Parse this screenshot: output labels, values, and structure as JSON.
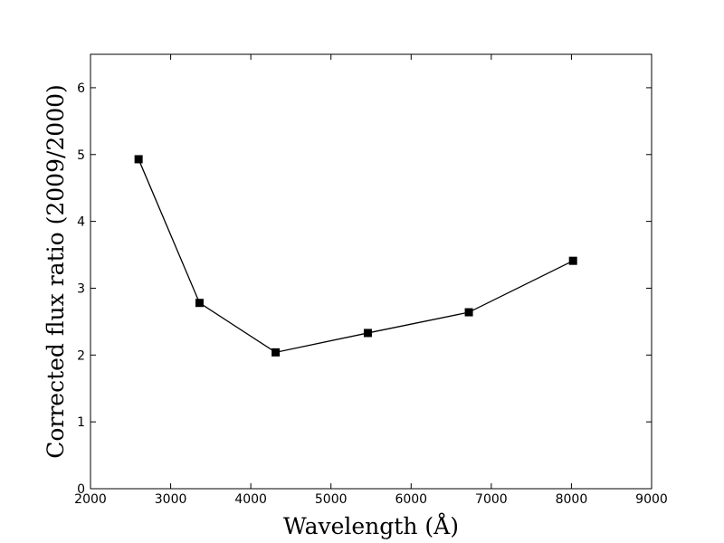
{
  "chart_data": {
    "type": "line",
    "xlabel": "Wavelength (Å)",
    "ylabel": "Corrected flux ratio (2009/2000)",
    "xlim": [
      2000,
      9000
    ],
    "ylim": [
      0,
      6.5
    ],
    "x_ticks": [
      "2000",
      "3000",
      "4000",
      "5000",
      "6000",
      "7000",
      "8000",
      "9000"
    ],
    "y_ticks": [
      "0",
      "1",
      "2",
      "3",
      "4",
      "5",
      "6"
    ],
    "grid": false,
    "legend": "none",
    "marker": "square",
    "series": [
      {
        "x": [
          2600,
          3360,
          4310,
          5460,
          6720,
          8020
        ],
        "y": [
          4.93,
          2.78,
          2.04,
          2.33,
          2.64,
          3.41
        ]
      }
    ],
    "colors": {
      "line": "#000000",
      "marker": "#000000"
    }
  }
}
